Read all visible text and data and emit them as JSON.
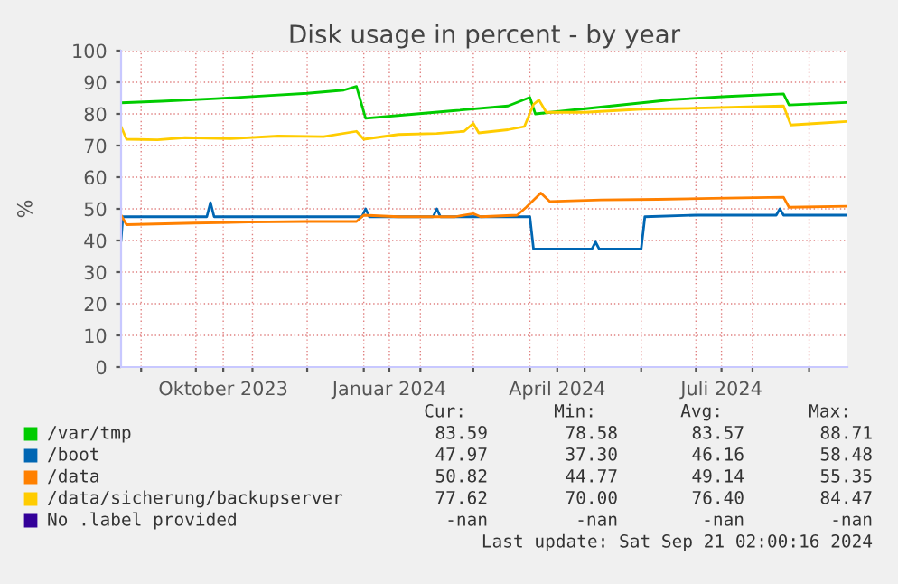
{
  "chart_data": {
    "type": "line",
    "title": "Disk usage in percent - by year",
    "ylabel": "%",
    "xlim": [
      "2023-08-21",
      "2024-09-22"
    ],
    "ylim": [
      0,
      100
    ],
    "yticks": [
      0,
      10,
      20,
      30,
      40,
      50,
      60,
      70,
      80,
      90,
      100
    ],
    "xticks": [
      {
        "value": "2023-09-01",
        "label": null
      },
      {
        "value": "2023-10-01",
        "label": null
      },
      {
        "value": "2023-10-16",
        "label": "Oktober 2023"
      },
      {
        "value": "2023-11-01",
        "label": null
      },
      {
        "value": "2023-12-01",
        "label": null
      },
      {
        "value": "2024-01-01",
        "label": null
      },
      {
        "value": "2024-01-15",
        "label": "Januar 2024"
      },
      {
        "value": "2024-02-01",
        "label": null
      },
      {
        "value": "2024-03-01",
        "label": null
      },
      {
        "value": "2024-04-01",
        "label": null
      },
      {
        "value": "2024-04-16",
        "label": "April 2024"
      },
      {
        "value": "2024-05-01",
        "label": null
      },
      {
        "value": "2024-06-01",
        "label": null
      },
      {
        "value": "2024-07-01",
        "label": null
      },
      {
        "value": "2024-07-15",
        "label": "Juli 2024"
      },
      {
        "value": "2024-08-01",
        "label": null
      },
      {
        "value": "2024-09-01",
        "label": null
      }
    ],
    "grid": true,
    "legend": "bottom",
    "line_style": "solid",
    "marker": "none",
    "series": [
      {
        "name": "/var/tmp",
        "color": "#00cc00",
        "x": [
          "2023-08-21",
          "2023-09-12",
          "2023-10-12",
          "2023-11-11",
          "2023-12-01",
          "2023-12-21",
          "2023-12-28",
          "2024-01-02",
          "2024-01-30",
          "2024-02-19",
          "2024-03-20",
          "2024-04-01",
          "2024-04-04",
          "2024-04-29",
          "2024-05-24",
          "2024-06-18",
          "2024-07-18",
          "2024-08-18",
          "2024-08-21",
          "2024-09-21"
        ],
        "values": [
          83.5,
          84,
          84.8,
          85.8,
          86.5,
          87.5,
          88.7,
          78.6,
          80,
          81,
          82.5,
          85.2,
          80,
          81.5,
          83,
          84.5,
          85.5,
          86.3,
          82.8,
          83.6
        ]
      },
      {
        "name": "/boot",
        "color": "#0066b3",
        "x": [
          "2023-08-21",
          "2023-08-22",
          "2023-10-07",
          "2023-10-09",
          "2023-10-11",
          "2023-12-31",
          "2024-01-02",
          "2024-01-04",
          "2024-02-08",
          "2024-02-10",
          "2024-02-12",
          "2024-04-01",
          "2024-04-03",
          "2024-05-05",
          "2024-05-07",
          "2024-05-09",
          "2024-06-01",
          "2024-06-03",
          "2024-07-01",
          "2024-08-14",
          "2024-08-16",
          "2024-08-18",
          "2024-09-21"
        ],
        "values": [
          40,
          47.5,
          47.5,
          52,
          47.5,
          47.5,
          50,
          47.5,
          47.5,
          50,
          47.5,
          47.5,
          37.3,
          37.3,
          39.5,
          37.3,
          37.3,
          47.5,
          48,
          48,
          50,
          48,
          48
        ]
      },
      {
        "name": "/data",
        "color": "#ff8000",
        "x": [
          "2023-08-21",
          "2023-08-24",
          "2023-09-30",
          "2023-10-30",
          "2023-11-30",
          "2023-12-28",
          "2024-01-01",
          "2024-01-20",
          "2024-02-20",
          "2024-03-01",
          "2024-03-05",
          "2024-03-25",
          "2024-03-30",
          "2024-04-07",
          "2024-04-12",
          "2024-05-10",
          "2024-06-10",
          "2024-07-10",
          "2024-08-18",
          "2024-08-21",
          "2024-09-21"
        ],
        "values": [
          48,
          45,
          45.5,
          45.8,
          46,
          46,
          48,
          47.5,
          47.5,
          48.5,
          47.5,
          48,
          50.5,
          55,
          52.3,
          52.8,
          53,
          53.3,
          53.7,
          50.5,
          50.8
        ]
      },
      {
        "name": "/data/sicherung/backupserver",
        "color": "#ffcc00",
        "x": [
          "2023-08-21",
          "2023-08-24",
          "2023-09-10",
          "2023-09-25",
          "2023-10-20",
          "2023-11-15",
          "2023-12-10",
          "2023-12-28",
          "2024-01-01",
          "2024-01-20",
          "2024-02-10",
          "2024-02-25",
          "2024-03-01",
          "2024-03-04",
          "2024-03-20",
          "2024-03-29",
          "2024-04-03",
          "2024-04-06",
          "2024-04-10",
          "2024-05-01",
          "2024-06-01",
          "2024-07-01",
          "2024-08-18",
          "2024-08-22",
          "2024-09-05",
          "2024-09-21"
        ],
        "values": [
          76,
          72,
          71.8,
          72.5,
          72.2,
          73,
          72.8,
          74.5,
          72,
          73.5,
          73.8,
          74.5,
          77,
          74,
          75,
          76,
          83,
          84.4,
          80.5,
          80.5,
          81.5,
          81.8,
          82.5,
          76.5,
          77,
          77.6
        ]
      },
      {
        "name": "No .label provided",
        "color": "#330099"
      }
    ],
    "annotations": [
      "Cur:",
      "Min:",
      "Avg:",
      "Max:",
      "83.59",
      "78.58",
      "83.57",
      "88.71",
      "47.97",
      "37.30",
      "46.16",
      "58.48",
      "50.82",
      "44.77",
      "49.14",
      "55.35",
      "77.62",
      "70.00",
      "76.40",
      "84.47",
      "-nan",
      "-nan",
      "-nan",
      "-nan",
      "Last update: Sat Sep 21 02:00:16 2024"
    ]
  }
}
